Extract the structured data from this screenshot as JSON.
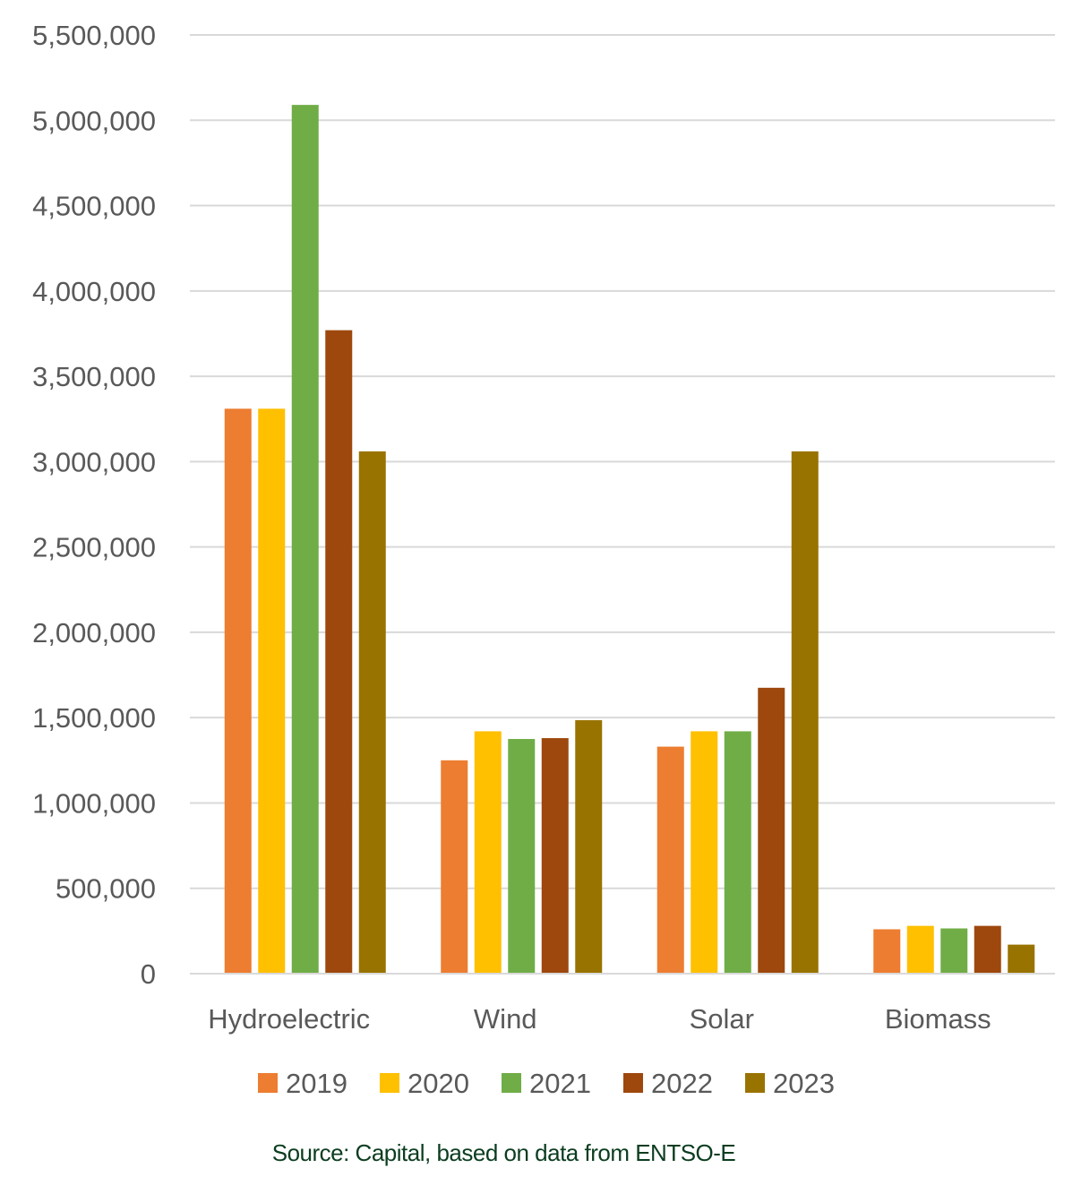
{
  "chart_data": {
    "type": "bar",
    "categories": [
      "Hydroelectric",
      "Wind",
      "Solar",
      "Biomass"
    ],
    "series": [
      {
        "name": "2019",
        "color": "#ED7D31",
        "values": [
          3310000,
          1250000,
          1330000,
          260000
        ]
      },
      {
        "name": "2020",
        "color": "#FFC000",
        "values": [
          3310000,
          1420000,
          1420000,
          280000
        ]
      },
      {
        "name": "2021",
        "color": "#70AD47",
        "values": [
          5090000,
          1375000,
          1420000,
          265000
        ]
      },
      {
        "name": "2022",
        "color": "#9E480E",
        "values": [
          3770000,
          1380000,
          1675000,
          280000
        ]
      },
      {
        "name": "2023",
        "color": "#997300",
        "values": [
          3060000,
          1485000,
          3060000,
          170000
        ]
      }
    ],
    "ylim": [
      0,
      5500000
    ],
    "yticks": [
      0,
      500000,
      1000000,
      1500000,
      2000000,
      2500000,
      3000000,
      3500000,
      4000000,
      4500000,
      5000000,
      5500000
    ],
    "ytick_labels": [
      "0",
      "500,000",
      "1,000,000",
      "1,500,000",
      "2,000,000",
      "2,500,000",
      "3,000,000",
      "3,500,000",
      "4,000,000",
      "4,500,000",
      "5,000,000",
      "5,500,000"
    ],
    "grid": true,
    "legend_position": "bottom",
    "title": "",
    "xlabel": "",
    "ylabel": ""
  },
  "source_note": "Source: Capital, based on data from ENTSO-E"
}
